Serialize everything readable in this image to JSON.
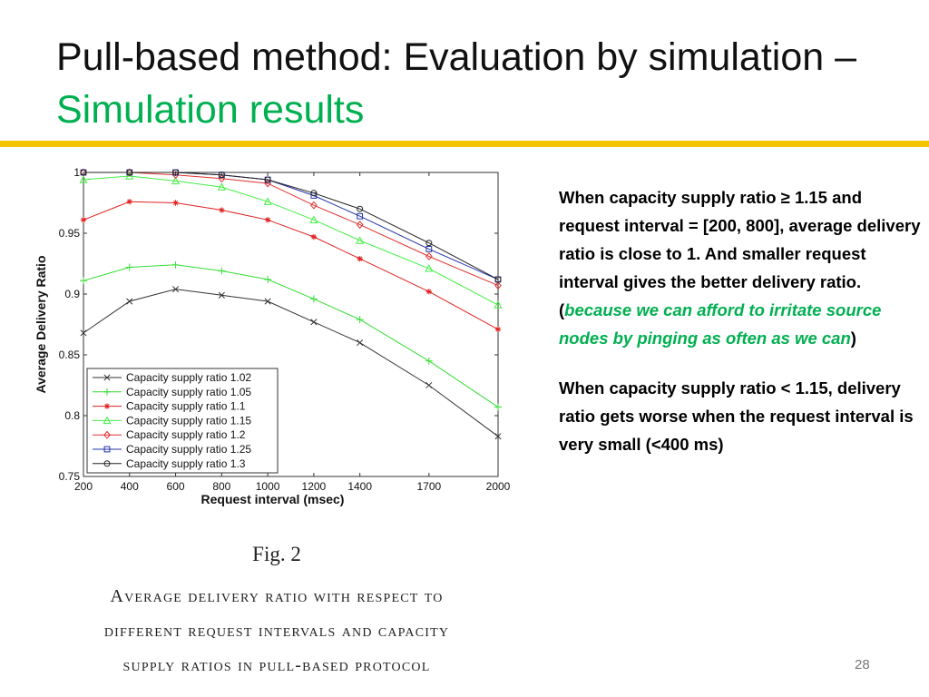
{
  "title": {
    "main": "Pull-based method: Evaluation by simulation – ",
    "accent": "Simulation results"
  },
  "notes": {
    "p1_text": "When capacity supply ratio ≥ 1.15 and request interval = [200, 800], average delivery ratio is close to 1. And smaller request interval gives the better delivery ratio. (",
    "p1_green": "because we can afford to irritate source nodes by pinging as often as we can",
    "p1_end": ")",
    "p2_text": "When capacity supply ratio < 1.15, delivery ratio gets worse when the request interval is very small (<400 ms)"
  },
  "caption": {
    "fig": "Fig. 2",
    "lines": [
      "Average delivery ratio with respect to",
      "different request intervals and capacity",
      "supply ratios in pull-based protocol"
    ]
  },
  "page_number": "28",
  "colors": {
    "accent": "#00b050",
    "rule": "#f5c400"
  },
  "chart_data": {
    "type": "line",
    "xlabel": "Request interval (msec)",
    "ylabel": "Average Delivery Ratio",
    "x": [
      200,
      400,
      600,
      800,
      1000,
      1200,
      1400,
      1700,
      2000
    ],
    "x_tick_labels": [
      "200",
      "400",
      "600",
      "800",
      "1000",
      "1200",
      "1400",
      "1700",
      "2000"
    ],
    "y_ticks": [
      0.75,
      0.8,
      0.85,
      0.9,
      0.95,
      1
    ],
    "y_tick_labels": [
      "0.75",
      "0.8",
      "0.85",
      "0.9",
      "0.95",
      "1"
    ],
    "ylim": [
      0.75,
      1.0
    ],
    "legend_position": "lower-left",
    "series": [
      {
        "name": "Capacity supply ratio 1.02",
        "color": "#333333",
        "marker": "x",
        "values": [
          0.868,
          0.894,
          0.904,
          0.899,
          0.894,
          0.877,
          0.86,
          0.825,
          0.783
        ]
      },
      {
        "name": "Capacity supply ratio 1.05",
        "color": "#33dd33",
        "marker": "plus",
        "values": [
          0.911,
          0.922,
          0.924,
          0.919,
          0.912,
          0.896,
          0.879,
          0.845,
          0.807
        ]
      },
      {
        "name": "Capacity supply ratio 1.1",
        "color": "#e02020",
        "marker": "star",
        "values": [
          0.961,
          0.976,
          0.975,
          0.969,
          0.961,
          0.947,
          0.929,
          0.902,
          0.871
        ]
      },
      {
        "name": "Capacity supply ratio 1.15",
        "color": "#44ee44",
        "marker": "triangle",
        "values": [
          0.994,
          0.997,
          0.993,
          0.988,
          0.976,
          0.961,
          0.944,
          0.921,
          0.891
        ]
      },
      {
        "name": "Capacity supply ratio 1.2",
        "color": "#e03030",
        "marker": "diamond",
        "values": [
          1.0,
          1.0,
          0.998,
          0.995,
          0.991,
          0.973,
          0.957,
          0.931,
          0.907
        ]
      },
      {
        "name": "Capacity supply ratio 1.25",
        "color": "#2233aa",
        "marker": "square",
        "values": [
          1.0,
          1.0,
          1.0,
          0.998,
          0.994,
          0.981,
          0.964,
          0.937,
          0.912
        ]
      },
      {
        "name": "Capacity supply ratio 1.3",
        "color": "#222222",
        "marker": "circle",
        "values": [
          1.0,
          1.0,
          1.0,
          0.998,
          0.994,
          0.983,
          0.97,
          0.942,
          0.912
        ]
      }
    ]
  }
}
